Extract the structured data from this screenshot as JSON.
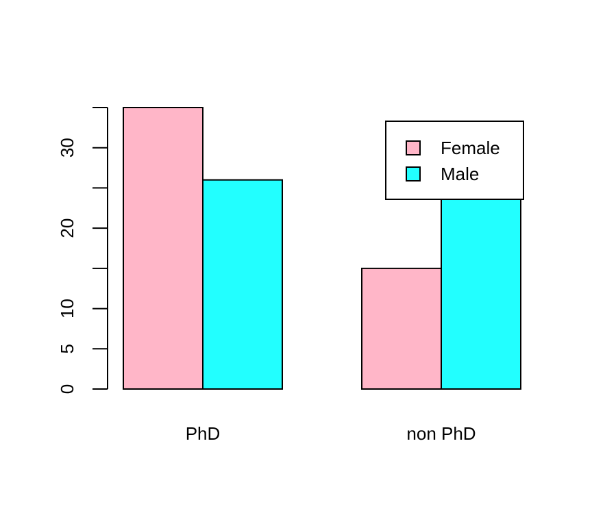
{
  "chart_data": {
    "type": "bar",
    "grouped": true,
    "categories": [
      "PhD",
      "non PhD"
    ],
    "series": [
      {
        "name": "Female",
        "values": [
          35,
          15
        ],
        "color": "#ffb6c8"
      },
      {
        "name": "Male",
        "values": [
          26,
          24
        ],
        "color": "#22ffff"
      }
    ],
    "y_ticks": [
      0,
      5,
      10,
      20,
      30
    ],
    "y_minor_ticks": [
      15,
      25,
      35
    ],
    "ylim": [
      0,
      35
    ],
    "title": "",
    "xlabel": "",
    "ylabel": "",
    "grid": false,
    "legend": {
      "position": "top-right",
      "entries": [
        "Female",
        "Male"
      ]
    }
  }
}
